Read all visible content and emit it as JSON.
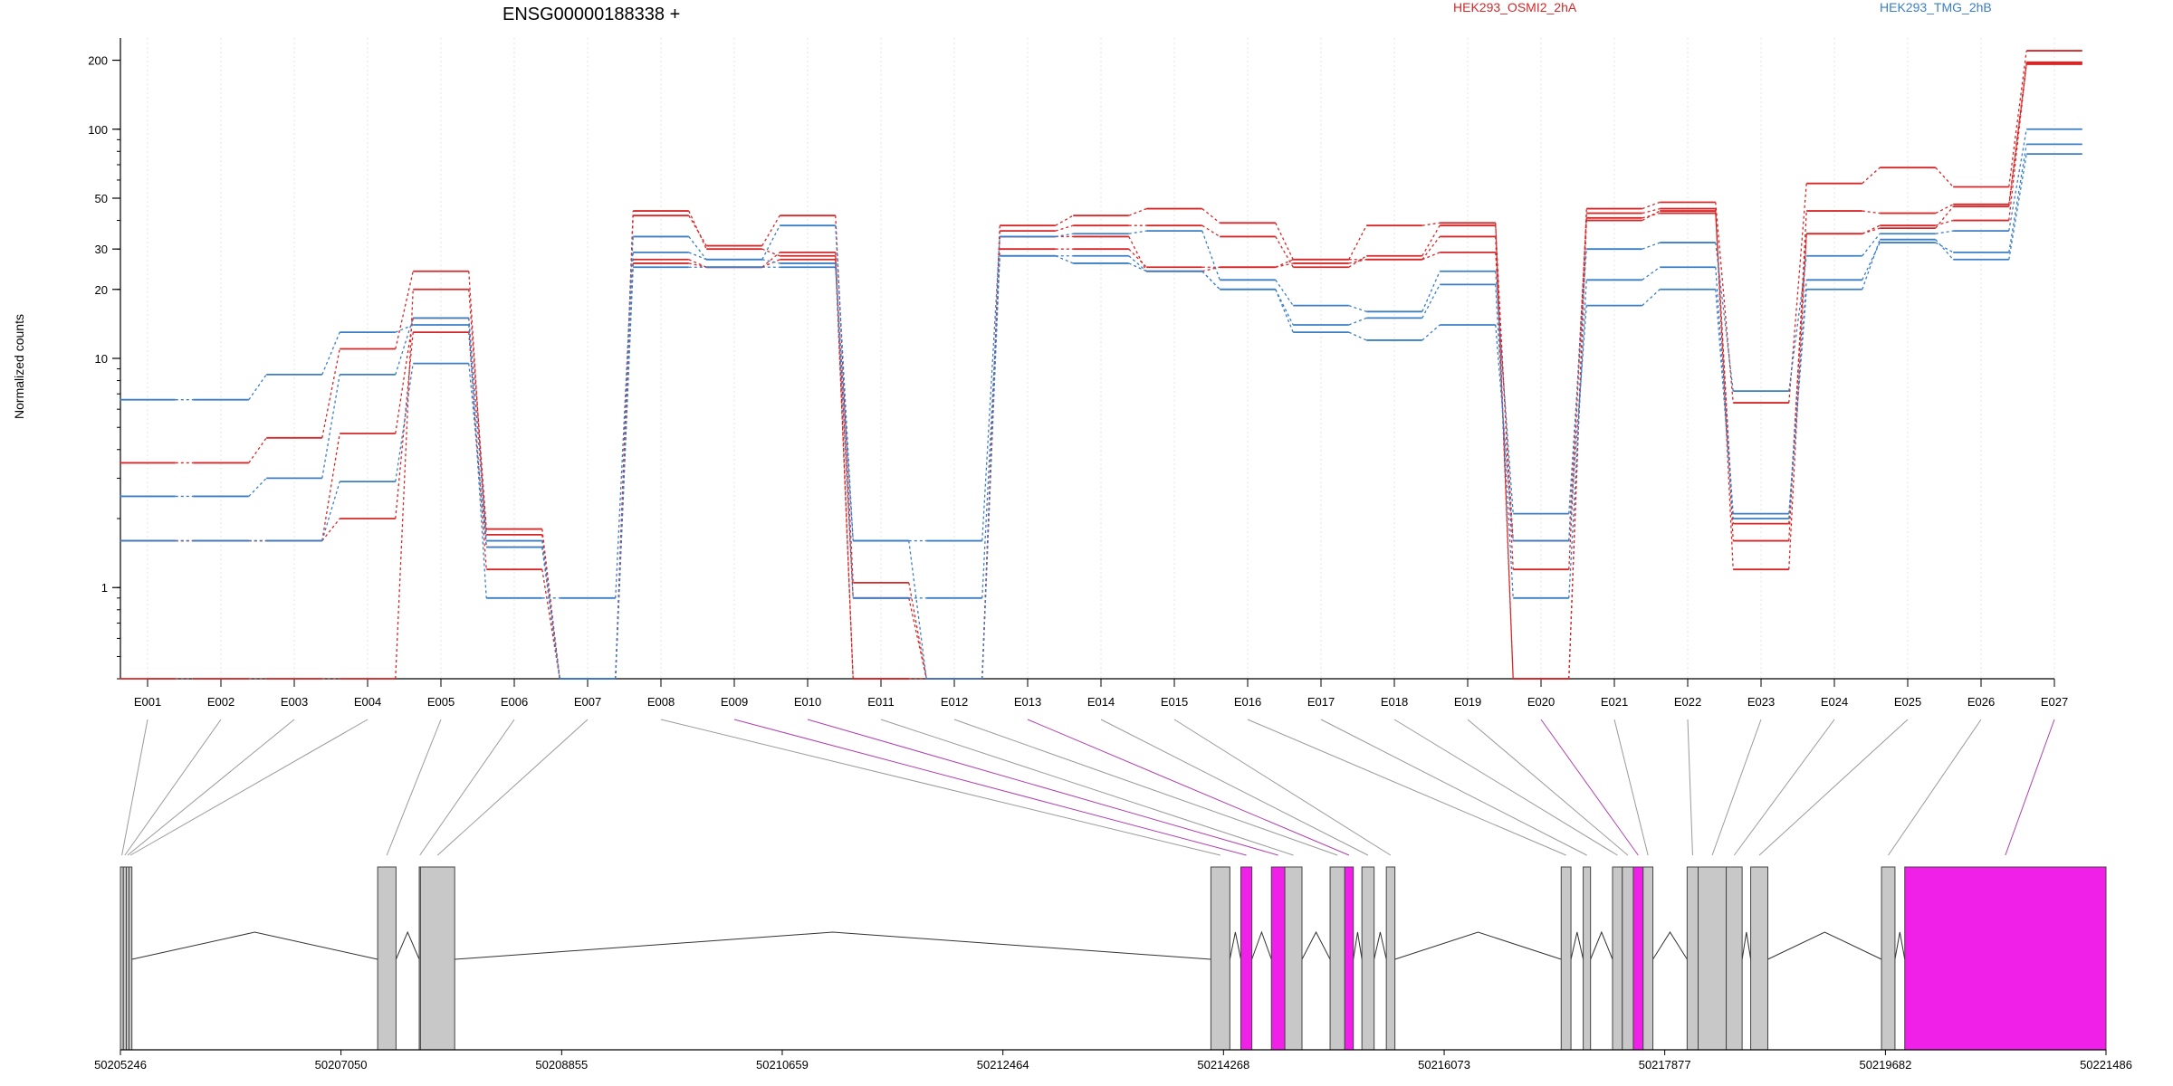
{
  "chart_data": {
    "type": "line",
    "title": "ENSG00000188338 +",
    "ylabel": "Normalized counts",
    "yscale": "log",
    "ylim": [
      0.4,
      250
    ],
    "yticks": [
      1,
      10,
      20,
      30,
      50,
      100,
      200
    ],
    "ytick_labels": [
      "1",
      "10",
      "20",
      "30",
      "50",
      "100",
      "200"
    ],
    "grid": true,
    "colors": {
      "OSMI2": "#d62728",
      "TMG": "#3b7ec6",
      "highlight": "#f020e8",
      "exon": "#c8c8c8"
    },
    "legend": [
      {
        "label": "HEK293_OSMI2_2hA",
        "color": "#d62728"
      },
      {
        "label": "HEK293_TMG_2hB",
        "color": "#3b7ec6"
      }
    ],
    "categories": [
      "E001",
      "E002",
      "E003",
      "E004",
      "E005",
      "E006",
      "E007",
      "E008",
      "E009",
      "E010",
      "E011",
      "E012",
      "E013",
      "E014",
      "E015",
      "E016",
      "E017",
      "E018",
      "E019",
      "E020",
      "E021",
      "E022",
      "E023",
      "E024",
      "E025",
      "E026",
      "E027"
    ],
    "series": [
      {
        "group": "OSMI2",
        "values": [
          0.4,
          0.4,
          0.4,
          0.4,
          20,
          1.8,
          0.4,
          42,
          31,
          42,
          1.05,
          0.4,
          38,
          42,
          45,
          39,
          27,
          38,
          39,
          0.4,
          45,
          48,
          6.4,
          58,
          68,
          56,
          220
        ]
      },
      {
        "group": "OSMI2",
        "values": [
          3.5,
          3.5,
          4.5,
          11,
          24,
          1.5,
          0.4,
          44,
          30,
          28,
          0.9,
          0.4,
          36,
          38,
          38,
          34,
          25,
          28,
          38,
          1.2,
          43,
          45,
          1.6,
          44,
          43,
          47,
          196
        ]
      },
      {
        "group": "OSMI2",
        "values": [
          1.6,
          1.6,
          1.6,
          2.0,
          13,
          1.2,
          0.4,
          26,
          25,
          27,
          0.4,
          0.4,
          30,
          30,
          25,
          25,
          26,
          27,
          29,
          1.6,
          41,
          43,
          1.9,
          35,
          38,
          40,
          194
        ]
      },
      {
        "group": "OSMI2",
        "values": [
          1.6,
          1.6,
          1.6,
          4.7,
          15,
          1.7,
          0.4,
          27,
          25,
          29,
          0.4,
          0.4,
          34,
          34,
          24,
          25,
          27,
          27,
          34,
          0.4,
          40,
          44,
          1.2,
          35,
          37,
          46,
          192
        ]
      },
      {
        "group": "TMG",
        "values": [
          6.6,
          6.6,
          8.5,
          13,
          14,
          0.9,
          0.9,
          34,
          27,
          38,
          1.6,
          1.6,
          34,
          35,
          36,
          22,
          17,
          16,
          24,
          2.1,
          30,
          32,
          7.2,
          28,
          35,
          36,
          100
        ]
      },
      {
        "group": "TMG",
        "values": [
          2.5,
          2.5,
          3.0,
          8.5,
          15,
          1.6,
          0.4,
          29,
          27,
          26,
          0.9,
          0.9,
          28,
          26,
          24,
          20,
          14,
          15,
          21,
          0.9,
          22,
          25,
          2.1,
          22,
          32,
          29,
          86
        ]
      },
      {
        "group": "TMG",
        "values": [
          1.6,
          1.6,
          1.6,
          2.9,
          9.5,
          1.5,
          0.4,
          25,
          25,
          25,
          1.6,
          0.4,
          28,
          28,
          24,
          20,
          13,
          12,
          14,
          1.6,
          17,
          20,
          2.0,
          20,
          33,
          27,
          78
        ]
      }
    ],
    "gene_model": {
      "axis_tick_labels": [
        "50205246",
        "50207050",
        "50208855",
        "50210659",
        "50212464",
        "50214268",
        "50216073",
        "50217877",
        "50219682",
        "50221486"
      ],
      "xlim": [
        50205246,
        50221486
      ],
      "exons": [
        {
          "id": "E001",
          "start": 50205246,
          "end": 50205270,
          "highlight": false
        },
        {
          "id": "E002",
          "start": 50205270,
          "end": 50205294,
          "highlight": false
        },
        {
          "id": "E003",
          "start": 50205294,
          "end": 50205316,
          "highlight": false
        },
        {
          "id": "E004",
          "start": 50205316,
          "end": 50205340,
          "highlight": false
        },
        {
          "id": "E005",
          "start": 50207350,
          "end": 50207500,
          "highlight": false
        },
        {
          "id": "E006",
          "start": 50207690,
          "end": 50207700,
          "highlight": false
        },
        {
          "id": "E007",
          "start": 50207700,
          "end": 50207980,
          "highlight": false
        },
        {
          "id": "E008",
          "start": 50214165,
          "end": 50214320,
          "highlight": false
        },
        {
          "id": "E009",
          "start": 50214410,
          "end": 50214500,
          "highlight": true
        },
        {
          "id": "E010",
          "start": 50214660,
          "end": 50214770,
          "highlight": true
        },
        {
          "id": "E011",
          "start": 50214770,
          "end": 50214910,
          "highlight": false
        },
        {
          "id": "E012",
          "start": 50215140,
          "end": 50215260,
          "highlight": false
        },
        {
          "id": "E013",
          "start": 50215260,
          "end": 50215330,
          "highlight": true
        },
        {
          "id": "E014",
          "start": 50215400,
          "end": 50215500,
          "highlight": false
        },
        {
          "id": "E015",
          "start": 50215600,
          "end": 50215670,
          "highlight": false
        },
        {
          "id": "E016",
          "start": 50217030,
          "end": 50217110,
          "highlight": false
        },
        {
          "id": "E017",
          "start": 50217210,
          "end": 50217270,
          "highlight": false
        },
        {
          "id": "E018",
          "start": 50217450,
          "end": 50217530,
          "highlight": false
        },
        {
          "id": "E019",
          "start": 50217530,
          "end": 50217620,
          "highlight": false
        },
        {
          "id": "E020",
          "start": 50217620,
          "end": 50217700,
          "highlight": true
        },
        {
          "id": "E021",
          "start": 50217700,
          "end": 50217780,
          "highlight": false
        },
        {
          "id": "E022",
          "start": 50218060,
          "end": 50218150,
          "highlight": false
        },
        {
          "id": "E023",
          "start": 50218150,
          "end": 50218380,
          "highlight": false
        },
        {
          "id": "E024",
          "start": 50218380,
          "end": 50218510,
          "highlight": false
        },
        {
          "id": "E025",
          "start": 50218580,
          "end": 50218720,
          "highlight": false
        },
        {
          "id": "E026",
          "start": 50219650,
          "end": 50219760,
          "highlight": false
        },
        {
          "id": "E027",
          "start": 50219840,
          "end": 50221486,
          "highlight": true
        }
      ]
    }
  }
}
